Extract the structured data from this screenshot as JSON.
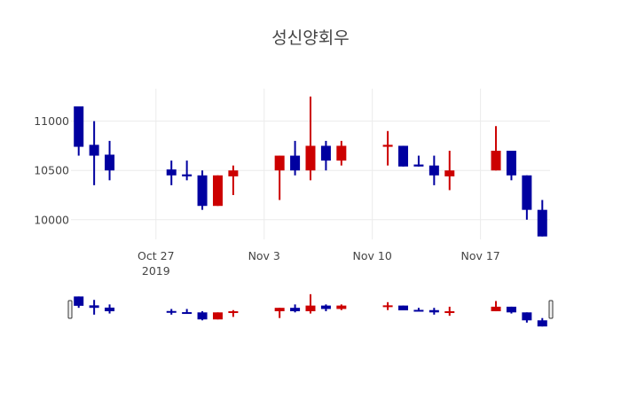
{
  "chart_data": {
    "type": "candlestick",
    "title": "성신양회우",
    "xlabel": "",
    "ylabel": "",
    "ylim": [
      9800,
      11330
    ],
    "grid": true,
    "legend": "none",
    "increasing_color": "#cc0000",
    "decreasing_color": "#0000a0",
    "y_ticks": [
      10000,
      10500,
      11000
    ],
    "x_ticks": [
      {
        "date": "2019-10-27",
        "label": "Oct 27",
        "sublabel": "2019"
      },
      {
        "date": "2019-11-03",
        "label": "Nov 3",
        "sublabel": ""
      },
      {
        "date": "2019-11-10",
        "label": "Nov 10",
        "sublabel": ""
      },
      {
        "date": "2019-11-17",
        "label": "Nov 17",
        "sublabel": ""
      }
    ],
    "x_range": [
      "2019-10-21 12:00",
      "2019-11-21 12:00"
    ],
    "candles": [
      {
        "date": "2019-10-22",
        "open": 11150,
        "high": 11150,
        "low": 10650,
        "close": 10740
      },
      {
        "date": "2019-10-23",
        "open": 10760,
        "high": 11000,
        "low": 10350,
        "close": 10650
      },
      {
        "date": "2019-10-24",
        "open": 10660,
        "high": 10800,
        "low": 10400,
        "close": 10500
      },
      {
        "date": "2019-10-28",
        "open": 10510,
        "high": 10600,
        "low": 10350,
        "close": 10450
      },
      {
        "date": "2019-10-29",
        "open": 10460,
        "high": 10600,
        "low": 10400,
        "close": 10440
      },
      {
        "date": "2019-10-30",
        "open": 10450,
        "high": 10500,
        "low": 10100,
        "close": 10140
      },
      {
        "date": "2019-10-31",
        "open": 10140,
        "high": 10450,
        "low": 10140,
        "close": 10450
      },
      {
        "date": "2019-11-01",
        "open": 10440,
        "high": 10550,
        "low": 10250,
        "close": 10500
      },
      {
        "date": "2019-11-04",
        "open": 10500,
        "high": 10650,
        "low": 10200,
        "close": 10650
      },
      {
        "date": "2019-11-05",
        "open": 10650,
        "high": 10800,
        "low": 10450,
        "close": 10500
      },
      {
        "date": "2019-11-06",
        "open": 10500,
        "high": 11250,
        "low": 10400,
        "close": 10750
      },
      {
        "date": "2019-11-07",
        "open": 10750,
        "high": 10800,
        "low": 10500,
        "close": 10600
      },
      {
        "date": "2019-11-08",
        "open": 10600,
        "high": 10800,
        "low": 10550,
        "close": 10750
      },
      {
        "date": "2019-11-11",
        "open": 10740,
        "high": 10900,
        "low": 10550,
        "close": 10760
      },
      {
        "date": "2019-11-12",
        "open": 10750,
        "high": 10750,
        "low": 10540,
        "close": 10540
      },
      {
        "date": "2019-11-13",
        "open": 10560,
        "high": 10650,
        "low": 10540,
        "close": 10540
      },
      {
        "date": "2019-11-14",
        "open": 10550,
        "high": 10650,
        "low": 10350,
        "close": 10450
      },
      {
        "date": "2019-11-15",
        "open": 10440,
        "high": 10700,
        "low": 10300,
        "close": 10500
      },
      {
        "date": "2019-11-18",
        "open": 10500,
        "high": 10950,
        "low": 10500,
        "close": 10700
      },
      {
        "date": "2019-11-19",
        "open": 10700,
        "high": 10700,
        "low": 10400,
        "close": 10450
      },
      {
        "date": "2019-11-20",
        "open": 10450,
        "high": 10450,
        "low": 10000,
        "close": 10100
      },
      {
        "date": "2019-11-21",
        "open": 10100,
        "high": 10200,
        "low": 9830,
        "close": 9830
      }
    ],
    "rangeslider": {
      "visible": true
    }
  }
}
